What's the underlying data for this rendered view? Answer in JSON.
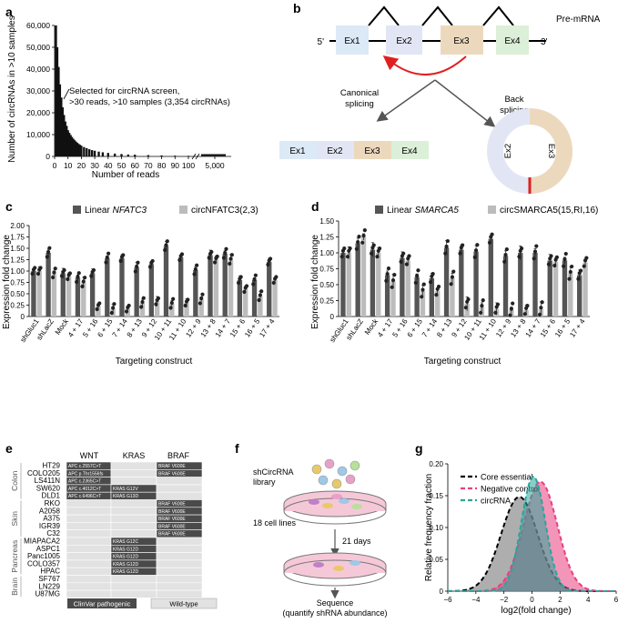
{
  "panel_letters": {
    "a": "a",
    "b": "b",
    "c": "c",
    "d": "d",
    "e": "e",
    "f": "f",
    "g": "g"
  },
  "chart_data": [
    {
      "panel": "a",
      "type": "bar",
      "ylabel": "Number of circRNAs in >10 samples",
      "xlabel": "Number of reads",
      "ylim": [
        0,
        60000
      ],
      "yticks": [
        "0",
        "10,000",
        "20,000",
        "30,000",
        "40,000",
        "50,000",
        "60,000"
      ],
      "xticks": [
        "0",
        "10",
        "20",
        "30",
        "40",
        "50",
        "60",
        "70",
        "80",
        "90",
        "100",
        "5,000"
      ],
      "annotation": [
        "Selected for circRNA screen,",
        ">30 reads, >10 samples (3,354 circRNAs)"
      ],
      "x": [
        1,
        2,
        3,
        4,
        5,
        6,
        7,
        8,
        9,
        10,
        11,
        12,
        13,
        14,
        15,
        16,
        17,
        18,
        19,
        20,
        22,
        24,
        26,
        28,
        30,
        33,
        36,
        40,
        45,
        50,
        55,
        60,
        70,
        80,
        90,
        100
      ],
      "values": [
        60000,
        50000,
        41000,
        33000,
        27000,
        22500,
        19000,
        16000,
        14000,
        12000,
        10800,
        9800,
        8900,
        8100,
        7400,
        6800,
        6200,
        5700,
        5300,
        4900,
        4300,
        3800,
        3300,
        2900,
        2600,
        2200,
        1900,
        1600,
        1300,
        1100,
        900,
        800,
        600,
        450,
        350,
        280
      ]
    },
    {
      "panel": "c",
      "type": "bar",
      "ylabel": "Expression fold change",
      "xlabel": "Targeting construct",
      "ylim": [
        0,
        2.0
      ],
      "yticks": [
        "0",
        "0.25",
        "0.50",
        "0.75",
        "1.00",
        "1.25",
        "1.50",
        "1.75",
        "2.00"
      ],
      "legend": [
        "Linear",
        "NFATC3",
        "circNFATC3(2,3)"
      ],
      "categories": [
        "shGluc1",
        "shLacZ",
        "Mock",
        "4 + 17",
        "5 + 16",
        "6 + 15",
        "7 + 14",
        "8 + 13",
        "9 + 12",
        "10 + 11",
        "11 + 10",
        "12 + 9",
        "13 + 8",
        "14 + 7",
        "15 + 6",
        "16 + 5",
        "17 + 4"
      ],
      "series": [
        {
          "name": "Linear NFATC3",
          "values": [
            1.0,
            1.4,
            0.95,
            0.85,
            0.95,
            1.28,
            1.28,
            1.08,
            1.15,
            1.55,
            1.3,
            1.02,
            1.35,
            1.38,
            0.8,
            0.8,
            1.2
          ]
        },
        {
          "name": "circNFATC3(2,3)",
          "values": [
            1.0,
            0.95,
            0.88,
            0.75,
            0.22,
            0.17,
            0.17,
            0.3,
            0.33,
            0.28,
            0.3,
            0.38,
            1.25,
            1.25,
            0.6,
            0.45,
            0.8
          ]
        }
      ]
    },
    {
      "panel": "d",
      "type": "bar",
      "ylabel": "Expression fold change",
      "xlabel": "Targeting construct",
      "ylim": [
        0,
        1.5
      ],
      "yticks": [
        "0",
        "0.25",
        "0.50",
        "0.75",
        "1.00",
        "1.25",
        "1.50"
      ],
      "legend": [
        "Linear",
        "SMARCA5",
        "circSMARCA5(15,RI,16)"
      ],
      "categories": [
        "shGluc1",
        "shLacZ",
        "Mock",
        "4 + 17",
        "5 + 16",
        "6 + 15",
        "7 + 14",
        "8 + 13",
        "9 + 12",
        "10 + 11",
        "11 + 10",
        "12 + 9",
        "13 + 8",
        "14 + 7",
        "15 + 6",
        "16 + 5",
        "17 + 4"
      ],
      "series": [
        {
          "name": "Linear SMARCA5",
          "values": [
            1.0,
            1.15,
            1.05,
            0.65,
            0.92,
            0.62,
            0.6,
            1.08,
            1.05,
            1.02,
            1.22,
            0.95,
            1.0,
            1.0,
            0.88,
            0.88,
            0.65
          ]
        },
        {
          "name": "circSMARCA5(15,RI,16)",
          "values": [
            1.0,
            1.25,
            1.0,
            0.55,
            0.88,
            0.4,
            0.4,
            0.6,
            0.2,
            0.15,
            0.12,
            0.1,
            0.1,
            0.12,
            0.86,
            0.68,
            0.85
          ]
        }
      ]
    },
    {
      "panel": "g",
      "type": "area",
      "ylabel": "Relative frequency fraction",
      "xlabel": "log2(fold change)",
      "xlim": [
        -6,
        6
      ],
      "ylim": [
        0,
        0.2
      ],
      "xticks": [
        "−6",
        "−4",
        "−2",
        "0",
        "2",
        "4",
        "6"
      ],
      "yticks": [
        "0",
        "0.05",
        "0.10",
        "0.15",
        "0.20"
      ],
      "series": [
        {
          "name": "Core essential",
          "color": "#000000",
          "fill": "#6b6b6b",
          "mean": -0.9,
          "sd": 1.3,
          "peak": 0.148
        },
        {
          "name": "Negative control",
          "color": "#ea3e7e",
          "fill": "#ea3e7e",
          "mean": 0.6,
          "sd": 1.2,
          "peak": 0.172
        },
        {
          "name": "circRNA",
          "color": "#2aa59b",
          "fill": "#2aa59b",
          "mean": 0.1,
          "sd": 0.85,
          "peak": 0.18
        }
      ]
    }
  ],
  "panel_b": {
    "premrna": "Pre-mRNA",
    "five": "5'",
    "three": "3'",
    "exons": [
      "Ex1",
      "Ex2",
      "Ex3",
      "Ex4"
    ],
    "canonical": [
      "Canonical",
      "splicing"
    ],
    "back": [
      "Back",
      "splicing"
    ],
    "colors": {
      "ex1": "#dce9f6",
      "ex2": "#e2e6f4",
      "ex3": "#ecd9bd",
      "ex4": "#dcefd8",
      "backsplice": "#e02020"
    }
  },
  "panel_e": {
    "headers": [
      "WNT",
      "KRAS",
      "BRAF"
    ],
    "groups": [
      "Colon",
      "Skin",
      "Pancreas",
      "Brain"
    ],
    "rows": [
      {
        "cell": "HT29",
        "wnt": "APC c.2557C>T",
        "kras": "",
        "braf": "BRAF V600E"
      },
      {
        "cell": "COLO205",
        "wnt": "APC p.Thr1556fs",
        "kras": "",
        "braf": "BRAF V600E"
      },
      {
        "cell": "LS411N",
        "wnt": "APC c.2365C>T",
        "kras": "",
        "braf": ""
      },
      {
        "cell": "SW620",
        "wnt": "APC c.4012C>T",
        "kras": "KRAS G12V",
        "braf": ""
      },
      {
        "cell": "DLD1",
        "wnt": "APC c.6496C>T",
        "kras": "KRAS G13D",
        "braf": ""
      },
      {
        "cell": "RKO",
        "wnt": "",
        "kras": "",
        "braf": "BRAF V600E"
      },
      {
        "cell": "A2058",
        "wnt": "",
        "kras": "",
        "braf": "BRAF V600E"
      },
      {
        "cell": "A375",
        "wnt": "",
        "kras": "",
        "braf": "BRAF V600E"
      },
      {
        "cell": "IGR39",
        "wnt": "",
        "kras": "",
        "braf": "BRAF V600E"
      },
      {
        "cell": "C32",
        "wnt": "",
        "kras": "",
        "braf": "BRAF V600E"
      },
      {
        "cell": "MIAPACA2",
        "wnt": "",
        "kras": "KRAS G12C",
        "braf": ""
      },
      {
        "cell": "ASPC1",
        "wnt": "",
        "kras": "KRAS G12D",
        "braf": ""
      },
      {
        "cell": "Panc1005",
        "wnt": "",
        "kras": "KRAS G12D",
        "braf": ""
      },
      {
        "cell": "COLO357",
        "wnt": "",
        "kras": "KRAS G12D",
        "braf": ""
      },
      {
        "cell": "HPAC",
        "wnt": "",
        "kras": "KRAS G12D",
        "braf": ""
      },
      {
        "cell": "SF767",
        "wnt": "",
        "kras": "",
        "braf": ""
      },
      {
        "cell": "LN229",
        "wnt": "",
        "kras": "",
        "braf": ""
      },
      {
        "cell": "U87MG",
        "wnt": "",
        "kras": "",
        "braf": ""
      }
    ],
    "legend": [
      "ClinVar pathogenic",
      "Wild-type"
    ],
    "colors": {
      "mut": "#4a4a4a",
      "wt": "#e2e2e2"
    }
  },
  "panel_f": {
    "library": [
      "shCircRNA",
      "library"
    ],
    "cells": "18 cell lines",
    "days": "21 days",
    "sequence": [
      "Sequence",
      "(quantify shRNA abundance)"
    ]
  }
}
